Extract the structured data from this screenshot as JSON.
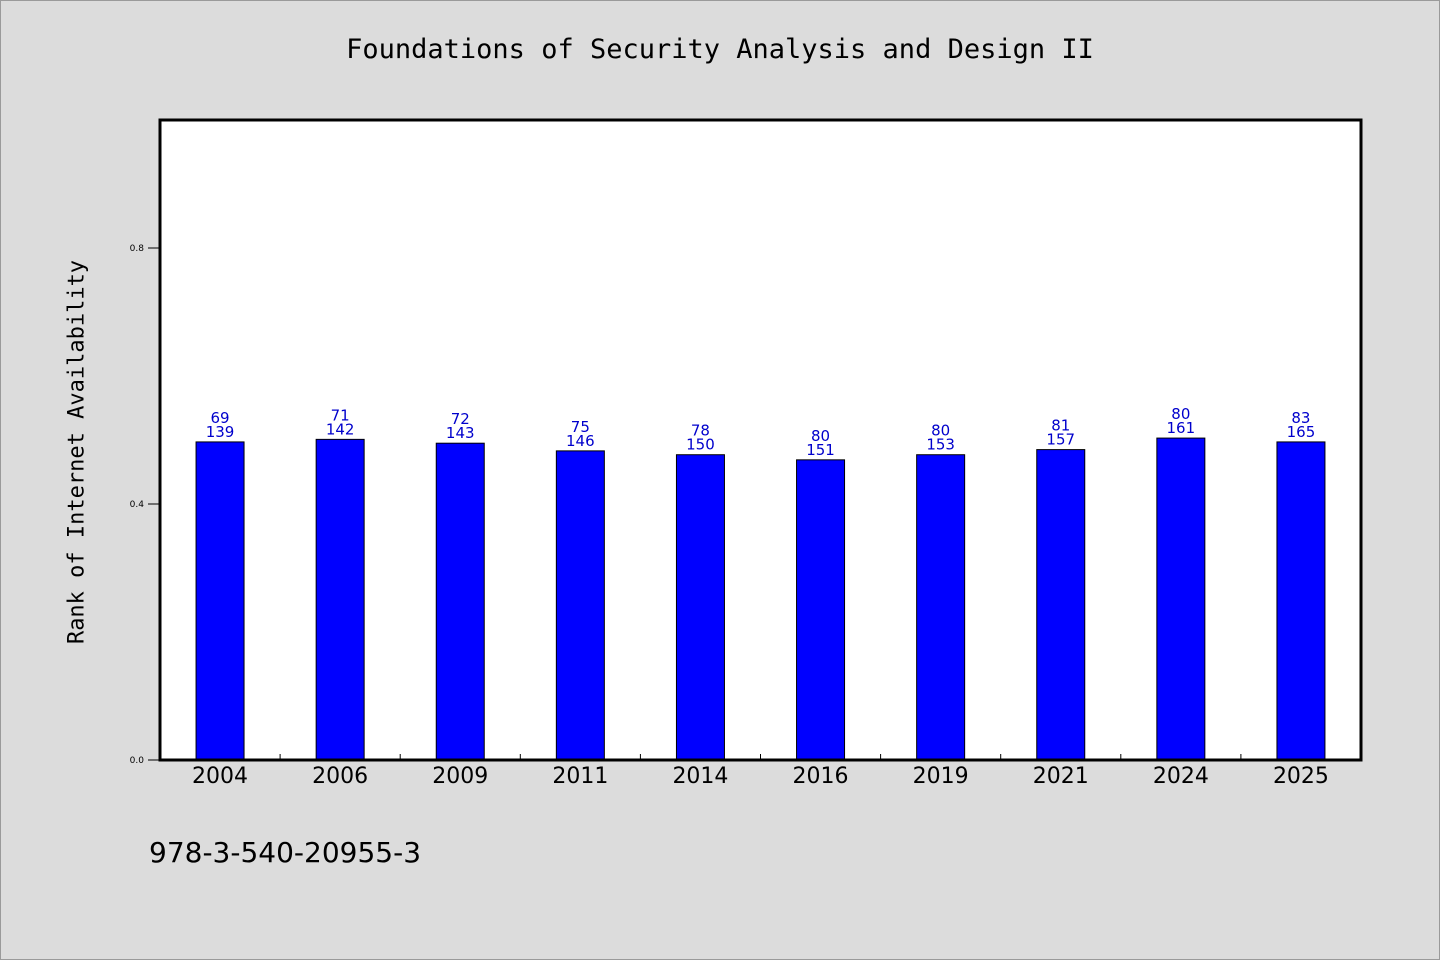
{
  "chart_data": {
    "type": "bar",
    "title": "Foundations of Security Analysis and Design II",
    "xlabel": "",
    "ylabel": "Rank of Internet Availability",
    "categories": [
      "2004",
      "2006",
      "2009",
      "2011",
      "2014",
      "2016",
      "2019",
      "2021",
      "2024",
      "2025"
    ],
    "values": [
      0.497,
      0.501,
      0.495,
      0.483,
      0.477,
      0.469,
      0.477,
      0.485,
      0.503,
      0.497
    ],
    "data_labels_top": [
      "69",
      "71",
      "72",
      "75",
      "78",
      "80",
      "80",
      "81",
      "80",
      "83"
    ],
    "data_labels_bottom": [
      "139",
      "142",
      "143",
      "146",
      "150",
      "151",
      "153",
      "157",
      "161",
      "165"
    ],
    "ylim": [
      0,
      1.0
    ],
    "yticks": [
      0.0,
      0.4,
      0.8
    ],
    "ytick_labels": [
      "0.0",
      "0.4",
      "0.8"
    ],
    "bar_color": "#0000ff",
    "label_color": "#0000cc",
    "grid": false,
    "legend": "none"
  },
  "footer": {
    "isbn": "978-3-540-20955-3"
  }
}
